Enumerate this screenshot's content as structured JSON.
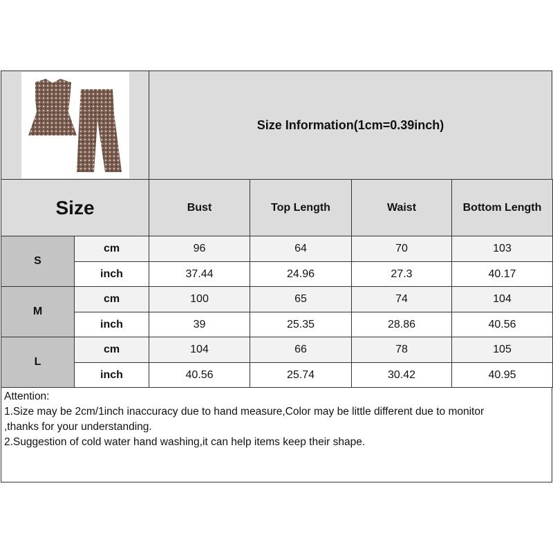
{
  "title": "Size Information(1cm=0.39inch)",
  "size_label": "Size",
  "columns": [
    "Bust",
    "Top Length",
    "Waist",
    "Bottom Length"
  ],
  "sizes": [
    {
      "size": "S",
      "rows": [
        {
          "unit": "cm",
          "values": [
            "96",
            "64",
            "70",
            "103"
          ]
        },
        {
          "unit": "inch",
          "values": [
            "37.44",
            "24.96",
            "27.3",
            "40.17"
          ]
        }
      ]
    },
    {
      "size": "M",
      "rows": [
        {
          "unit": "cm",
          "values": [
            "100",
            "65",
            "74",
            "104"
          ]
        },
        {
          "unit": "inch",
          "values": [
            "39",
            "25.35",
            "28.86",
            "40.56"
          ]
        }
      ]
    },
    {
      "size": "L",
      "rows": [
        {
          "unit": "cm",
          "values": [
            "104",
            "66",
            "78",
            "105"
          ]
        },
        {
          "unit": "inch",
          "values": [
            "40.56",
            "25.74",
            "30.42",
            "40.95"
          ]
        }
      ]
    }
  ],
  "attention": [
    "Attention:",
    "1.Size may be 2cm/1inch inaccuracy due to hand measure,Color may be little different due to monitor",
    ",thanks for your understanding.",
    "2.Suggestion of cold water hand washing,it can help items keep their shape."
  ],
  "product_image": "leopard-print-sleeveless-top-and-wide-leg-pants"
}
